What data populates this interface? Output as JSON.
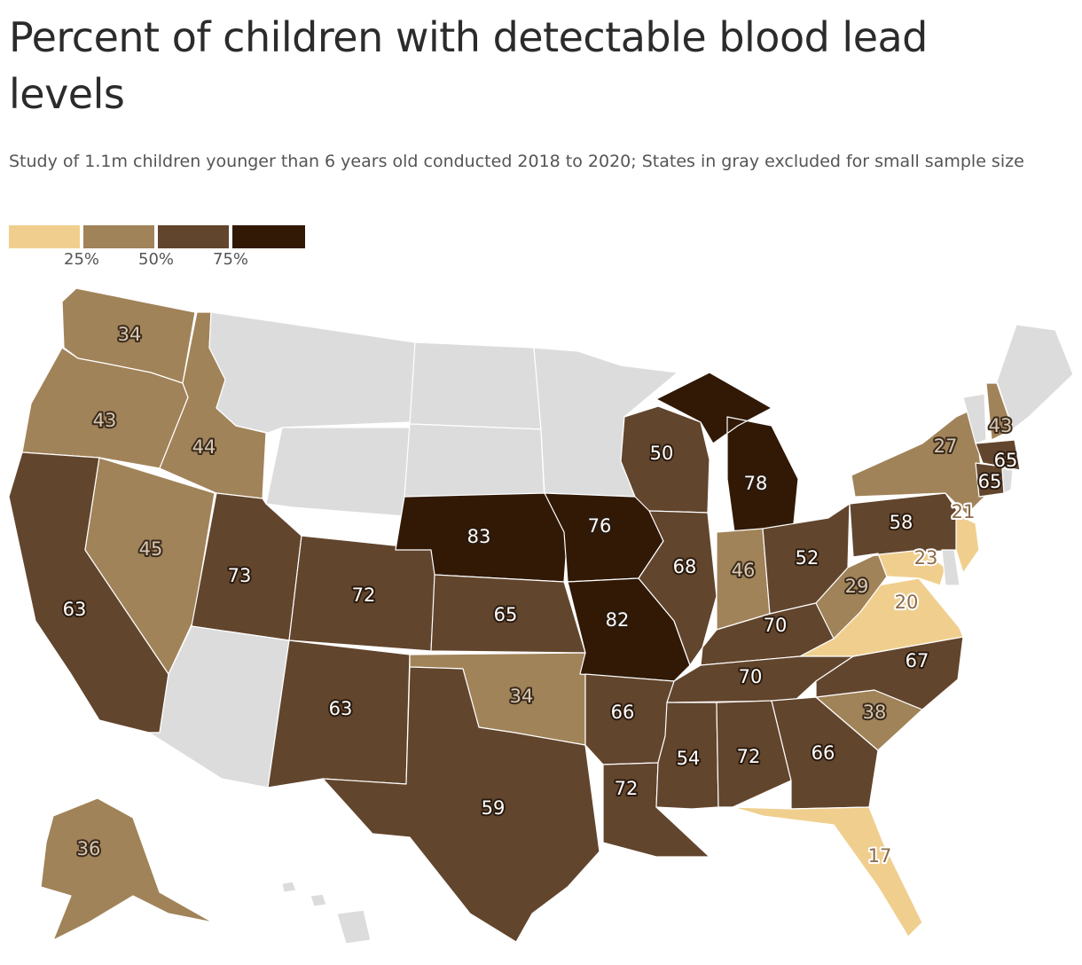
{
  "title": "Percent of children with detectable blood lead levels",
  "subtitle": "Study of 1.1m children younger than 6 years old conducted 2018 to 2020; States in gray excluded for small sample size",
  "colors": {
    "bin1": "#f0cf8e",
    "bin2": "#a18359",
    "bin3": "#62452d",
    "bin4": "#311906",
    "excluded": "#dcdcdc",
    "border": "#ffffff"
  },
  "legend": {
    "ticks": [
      "25%",
      "50%",
      "75%"
    ]
  },
  "chart_data": {
    "type": "choropleth",
    "title": "Percent of children with detectable blood lead levels",
    "bins": [
      {
        "min": 0,
        "max": 25,
        "color": "#f0cf8e"
      },
      {
        "min": 25,
        "max": 50,
        "color": "#a18359"
      },
      {
        "min": 50,
        "max": 75,
        "color": "#62452d"
      },
      {
        "min": 75,
        "max": 100,
        "color": "#311906"
      }
    ],
    "values": [
      {
        "state": "WA",
        "value": 34
      },
      {
        "state": "OR",
        "value": 43
      },
      {
        "state": "ID",
        "value": 44
      },
      {
        "state": "CA",
        "value": 63
      },
      {
        "state": "NV",
        "value": 45
      },
      {
        "state": "UT",
        "value": 73
      },
      {
        "state": "CO",
        "value": 72
      },
      {
        "state": "NM",
        "value": 63
      },
      {
        "state": "NE",
        "value": 83
      },
      {
        "state": "KS",
        "value": 65
      },
      {
        "state": "OK",
        "value": 34
      },
      {
        "state": "TX",
        "value": 59
      },
      {
        "state": "IA",
        "value": 76
      },
      {
        "state": "MO",
        "value": 82
      },
      {
        "state": "AR",
        "value": 66
      },
      {
        "state": "LA",
        "value": 72
      },
      {
        "state": "WI",
        "value": 50
      },
      {
        "state": "IL",
        "value": 68
      },
      {
        "state": "MI",
        "value": 78
      },
      {
        "state": "IN",
        "value": 46
      },
      {
        "state": "OH",
        "value": 52
      },
      {
        "state": "KY",
        "value": 70
      },
      {
        "state": "TN",
        "value": 70
      },
      {
        "state": "MS",
        "value": 54
      },
      {
        "state": "AL",
        "value": 72
      },
      {
        "state": "GA",
        "value": 66
      },
      {
        "state": "FL",
        "value": 17
      },
      {
        "state": "SC",
        "value": 38
      },
      {
        "state": "NC",
        "value": 67
      },
      {
        "state": "VA",
        "value": 20
      },
      {
        "state": "WV",
        "value": 29
      },
      {
        "state": "MD",
        "value": 23
      },
      {
        "state": "PA",
        "value": 58
      },
      {
        "state": "NY",
        "value": 27
      },
      {
        "state": "NJ",
        "value": 21
      },
      {
        "state": "CT",
        "value": 65
      },
      {
        "state": "MA",
        "value": 65
      },
      {
        "state": "NH",
        "value": 43
      },
      {
        "state": "AK",
        "value": 36
      }
    ],
    "excluded": [
      "MT",
      "ND",
      "SD",
      "MN",
      "WY",
      "AZ",
      "ME",
      "VT",
      "RI",
      "DE",
      "HI"
    ]
  }
}
